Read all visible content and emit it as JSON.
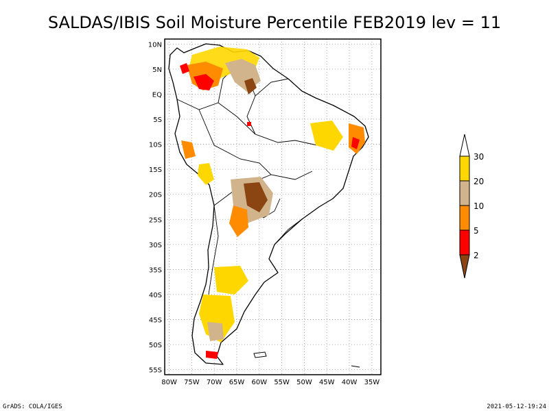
{
  "title": "SALDAS/IBIS Soil Moisture Percentile FEB2019 lev = 11",
  "map": {
    "lat_ticks": [
      "10N",
      "5N",
      "EQ",
      "5S",
      "10S",
      "15S",
      "20S",
      "25S",
      "30S",
      "35S",
      "40S",
      "45S",
      "50S",
      "55S"
    ],
    "lon_ticks": [
      "80W",
      "75W",
      "70W",
      "65W",
      "60W",
      "55W",
      "50W",
      "45W",
      "40W",
      "35W"
    ],
    "lat_range": [
      -56,
      11
    ],
    "lon_range": [
      -81,
      -33
    ]
  },
  "legend": {
    "labels": [
      "2",
      "5",
      "10",
      "20",
      "30"
    ],
    "colors": {
      "below_2": "#8b4513",
      "2_5": "#ff0000",
      "5_10": "#ff8c00",
      "10_20": "#d2b48c",
      "20_30": "#ffd700",
      "above_30": "#ffffff"
    }
  },
  "footer": {
    "left": "GrADS: COLA/IGES",
    "right": "2021-05-12-19:24"
  }
}
